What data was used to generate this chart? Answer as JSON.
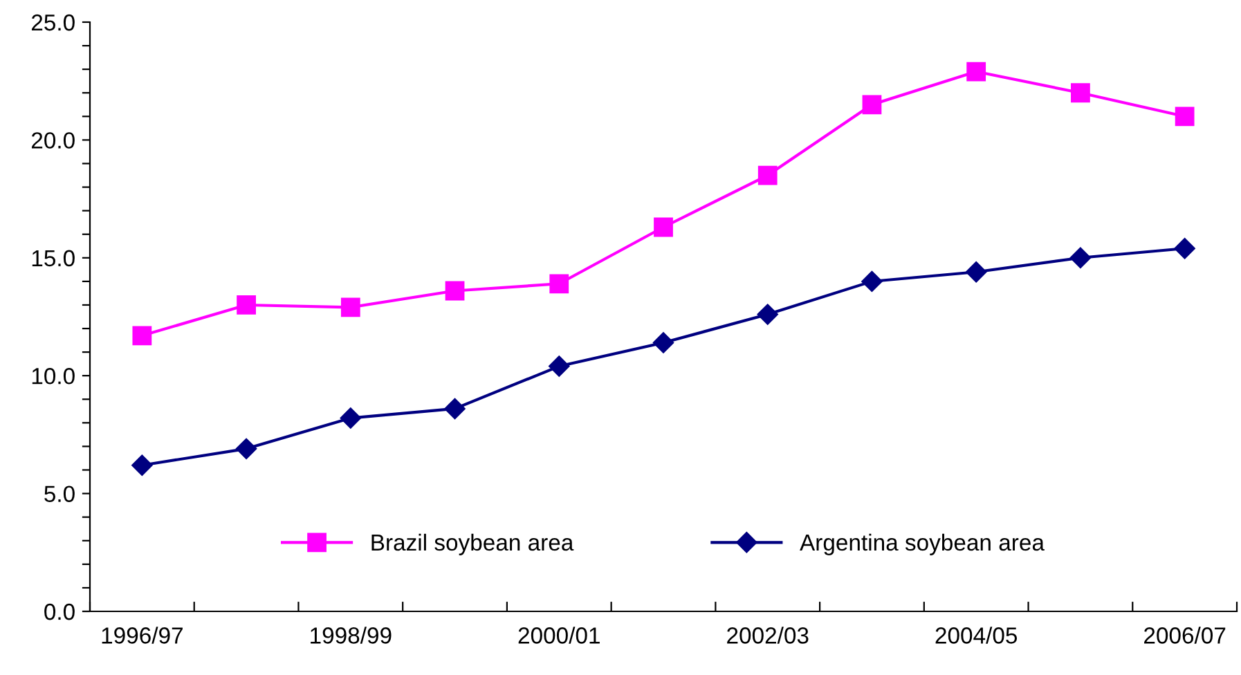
{
  "chart_data": {
    "type": "line",
    "categories": [
      "1996/97",
      null,
      "1998/99",
      null,
      "2000/01",
      null,
      "2002/03",
      null,
      "2004/05",
      null,
      "2006/07"
    ],
    "series": [
      {
        "name": "Brazil soybean area",
        "color": "#ff00ff",
        "marker": "square",
        "values": [
          11.7,
          13.0,
          12.9,
          13.6,
          13.9,
          16.3,
          18.5,
          21.5,
          22.9,
          22.0,
          21.0
        ]
      },
      {
        "name": "Argentina soybean area",
        "color": "#000080",
        "marker": "diamond",
        "values": [
          6.2,
          6.9,
          8.2,
          8.6,
          10.4,
          11.4,
          12.6,
          14.0,
          14.4,
          15.0,
          15.4
        ]
      }
    ],
    "ylim": [
      0,
      25
    ],
    "yticks": [
      {
        "value": 0,
        "label": "0.0"
      },
      {
        "value": 1,
        "label": null
      },
      {
        "value": 2,
        "label": null
      },
      {
        "value": 3,
        "label": null
      },
      {
        "value": 4,
        "label": null
      },
      {
        "value": 5,
        "label": "5.0"
      },
      {
        "value": 6,
        "label": null
      },
      {
        "value": 7,
        "label": null
      },
      {
        "value": 8,
        "label": null
      },
      {
        "value": 9,
        "label": null
      },
      {
        "value": 10,
        "label": "10.0"
      },
      {
        "value": 11,
        "label": null
      },
      {
        "value": 12,
        "label": null
      },
      {
        "value": 13,
        "label": null
      },
      {
        "value": 14,
        "label": null
      },
      {
        "value": 15,
        "label": "15.0"
      },
      {
        "value": 16,
        "label": null
      },
      {
        "value": 17,
        "label": null
      },
      {
        "value": 18,
        "label": null
      },
      {
        "value": 19,
        "label": null
      },
      {
        "value": 20,
        "label": "20.0"
      },
      {
        "value": 21,
        "label": null
      },
      {
        "value": 22,
        "label": null
      },
      {
        "value": 23,
        "label": null
      },
      {
        "value": 24,
        "label": null
      },
      {
        "value": 25,
        "label": "25.0"
      }
    ],
    "grid": false,
    "legend": "bottom",
    "line_style": "solid"
  }
}
